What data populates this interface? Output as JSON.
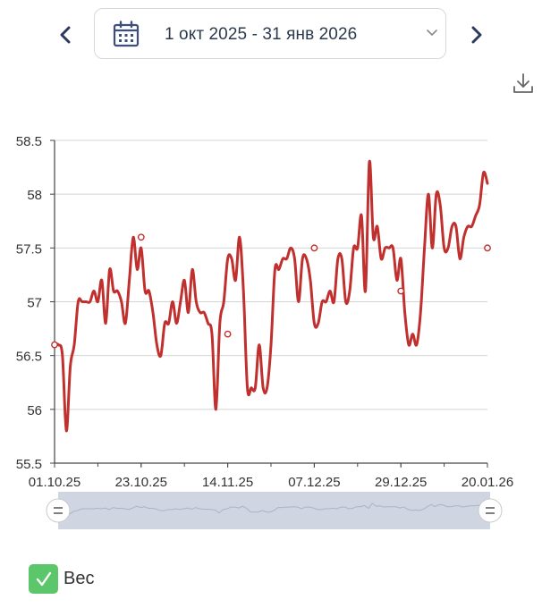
{
  "header": {
    "date_range": "1 окт 2025 - 31 янв 2026",
    "calendar_icon": "calendar-icon",
    "prev_icon": "chevron-left-icon",
    "next_icon": "chevron-right-icon",
    "dropdown_icon": "chevron-down-icon",
    "download_icon": "download-icon"
  },
  "legend": {
    "label": "Вес",
    "checked": true,
    "color": "#5cc66a"
  },
  "colors": {
    "line": "#c0302e",
    "grid": "#d4d4d4",
    "axis": "#444444",
    "navigator_fill": "#cfd6e2",
    "navigator_line": "#aab4c4",
    "accent": "#2b3a5c"
  },
  "chart_data": {
    "type": "line",
    "series": [
      {
        "name": "Вес",
        "values": [
          56.6,
          56.6,
          56.5,
          55.8,
          56.4,
          56.6,
          57.0,
          57.0,
          57.0,
          57.0,
          57.1,
          57.0,
          57.2,
          56.8,
          57.3,
          57.1,
          57.1,
          57.0,
          56.8,
          57.2,
          57.6,
          57.3,
          57.5,
          57.1,
          57.1,
          56.9,
          56.6,
          56.5,
          56.8,
          56.8,
          57.0,
          56.8,
          57.0,
          57.2,
          56.9,
          57.3,
          57.0,
          56.9,
          56.9,
          56.8,
          56.7,
          56.0,
          56.8,
          57.0,
          57.4,
          57.4,
          57.2,
          57.6,
          57.1,
          56.2,
          56.2,
          56.2,
          56.6,
          56.2,
          56.2,
          56.6,
          57.3,
          57.3,
          57.4,
          57.4,
          57.5,
          57.4,
          57.0,
          57.4,
          57.4,
          57.2,
          56.8,
          56.8,
          57.0,
          57.0,
          57.1,
          57.0,
          57.4,
          57.4,
          57.0,
          57.1,
          57.5,
          57.5,
          57.8,
          57.1,
          58.3,
          57.6,
          57.7,
          57.4,
          57.5,
          57.5,
          57.5,
          57.2,
          57.4,
          56.9,
          56.6,
          56.7,
          56.6,
          56.9,
          57.5,
          58.0,
          57.5,
          58.0,
          57.9,
          57.5,
          57.5,
          57.7,
          57.7,
          57.4,
          57.6,
          57.7,
          57.7,
          57.8,
          57.9,
          58.2,
          58.1
        ],
        "marked_points": [
          {
            "x": "01.10.25",
            "y": 56.6
          },
          {
            "x": "23.10.25",
            "y": 57.6
          },
          {
            "x": "14.11.25",
            "y": 56.7
          },
          {
            "x": "07.12.25",
            "y": 57.5
          },
          {
            "x": "29.12.25",
            "y": 57.1
          },
          {
            "x": "20.01.26",
            "y": 57.5
          }
        ]
      }
    ],
    "x_tick_labels": [
      "01.10.25",
      "23.10.25",
      "14.11.25",
      "07.12.25",
      "29.12.25",
      "20.01.26"
    ],
    "y_tick_labels": [
      "55.5",
      "56",
      "56.5",
      "57",
      "57.5",
      "58",
      "58.5"
    ],
    "ylim": [
      55.5,
      58.5
    ],
    "grid": true,
    "navigator": true
  }
}
